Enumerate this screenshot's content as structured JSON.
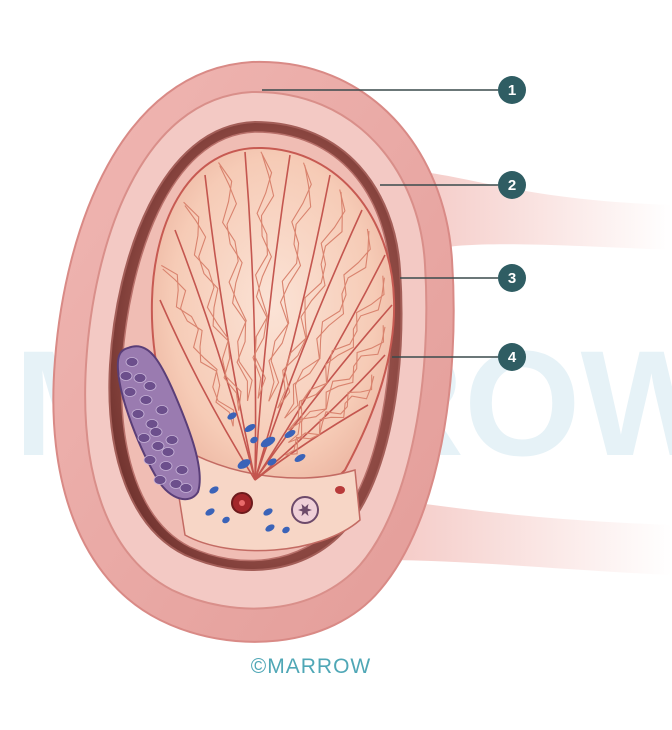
{
  "watermark": {
    "text": "MARROW"
  },
  "copyright": {
    "text": "©MARROW"
  },
  "callouts": [
    {
      "number": "1"
    },
    {
      "number": "2"
    },
    {
      "number": "3"
    },
    {
      "number": "4"
    }
  ],
  "colors": {
    "callout_circle": "#2f5d63",
    "leader_line": "#3a4a4c",
    "scrotal_wall": "#e8a9a7",
    "scrotal_wall_inner": "#f2c6c1",
    "tunica_vaginalis_dark": "#7d3c37",
    "testis_body": "#f6cbb6",
    "lobule_lines": "#c4564f",
    "epididymis": "#9a7bb0",
    "vessels": "#3b63b8",
    "copyright_text": "#4fa7b6"
  }
}
